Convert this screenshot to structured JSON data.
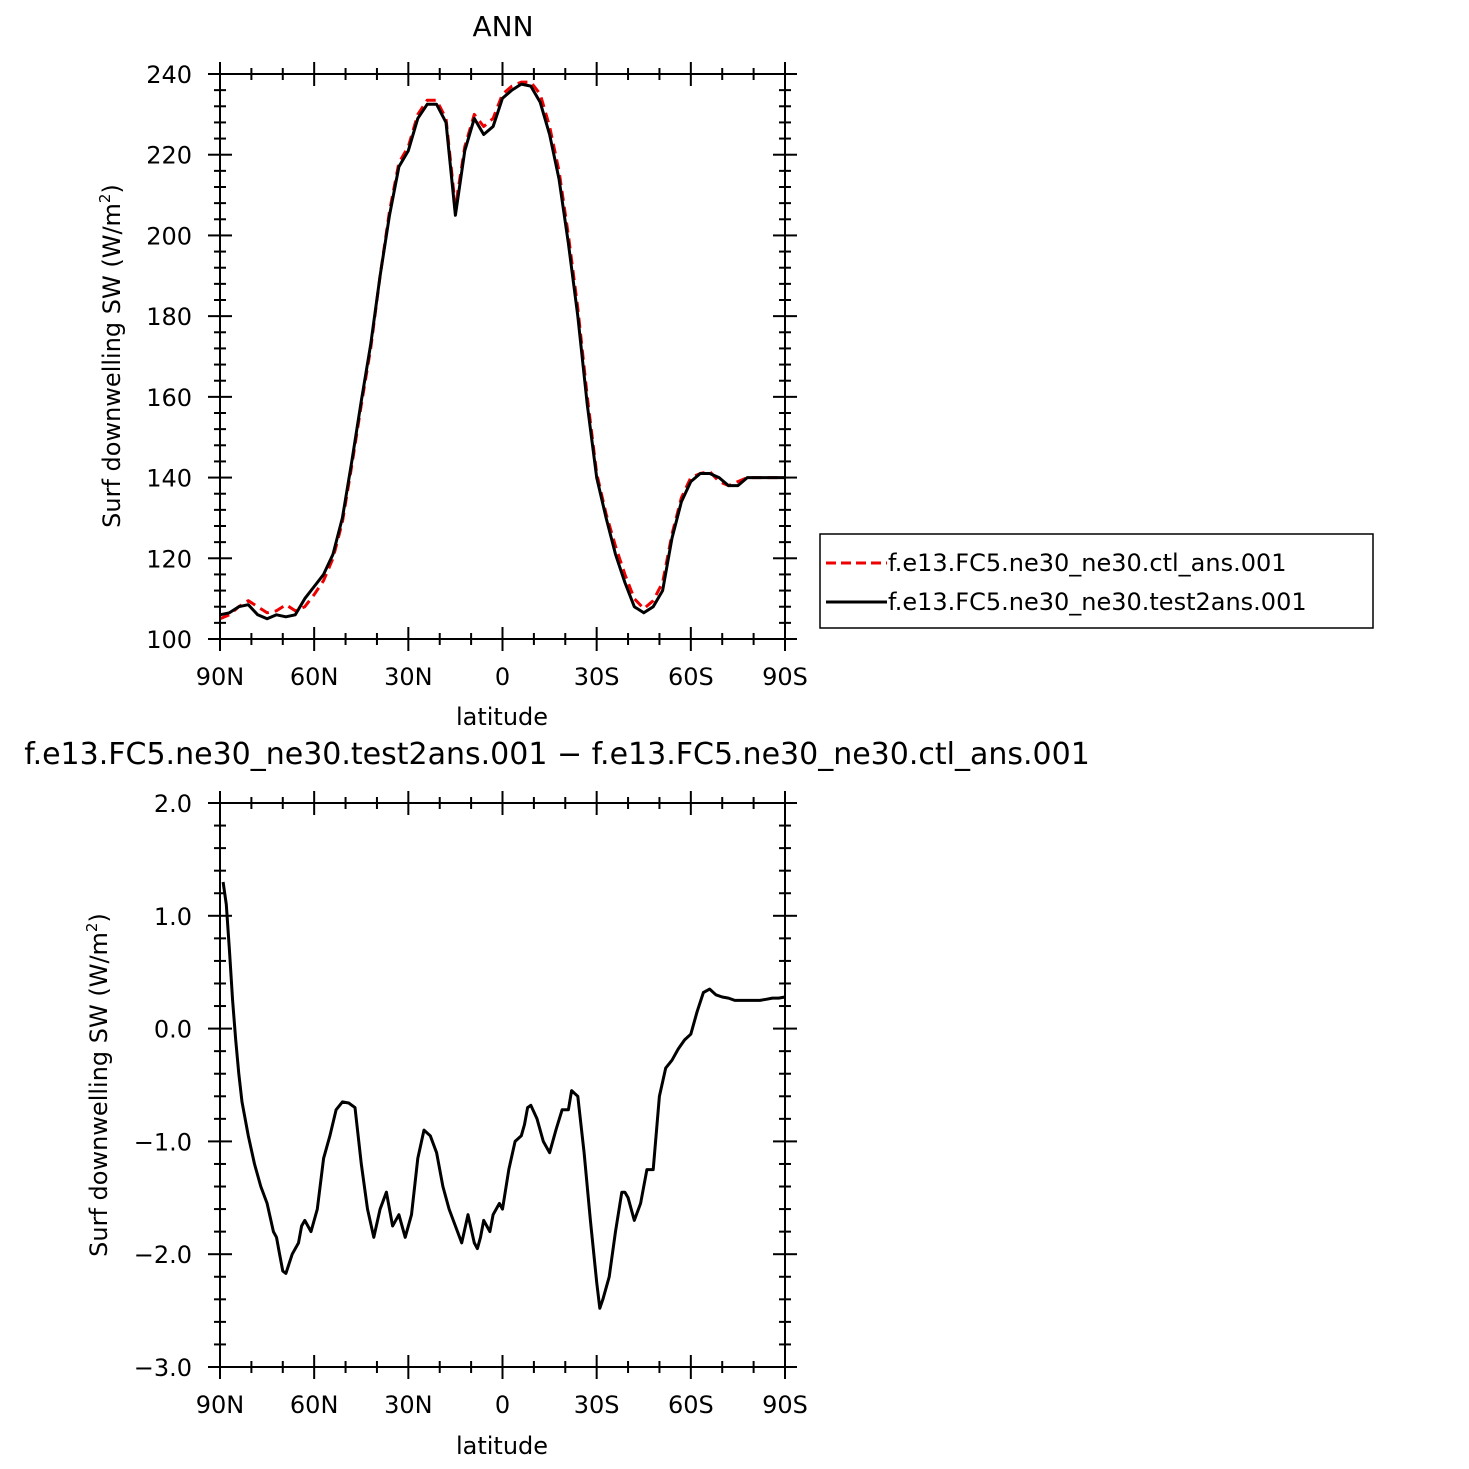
{
  "chart_data": [
    {
      "type": "line",
      "title": "ANN",
      "xlabel": "latitude",
      "ylabel_main": "Surf downwelling SW (W/m",
      "ylabel_sup": "2",
      "ylabel_close": ")",
      "xlim": [
        90,
        -90
      ],
      "ylim": [
        100,
        240
      ],
      "xticks": [
        {
          "v": 90,
          "label": "90N"
        },
        {
          "v": 60,
          "label": "60N"
        },
        {
          "v": 30,
          "label": "30N"
        },
        {
          "v": 0,
          "label": "0"
        },
        {
          "v": -30,
          "label": "30S"
        },
        {
          "v": -60,
          "label": "60S"
        },
        {
          "v": -90,
          "label": "90S"
        }
      ],
      "yticks": [
        {
          "v": 100,
          "label": "100"
        },
        {
          "v": 120,
          "label": "120"
        },
        {
          "v": 140,
          "label": "140"
        },
        {
          "v": 160,
          "label": "160"
        },
        {
          "v": 180,
          "label": "180"
        },
        {
          "v": 200,
          "label": "200"
        },
        {
          "v": 220,
          "label": "220"
        },
        {
          "v": 240,
          "label": "240"
        }
      ],
      "legend": {
        "placement": "right",
        "entries": [
          {
            "name": "f.e13.FC5.ne30_ne30.ctl_ans.001",
            "color": "#ee0000",
            "dash": "dashed"
          },
          {
            "name": "f.e13.FC5.ne30_ne30.test2ans.001",
            "color": "#000000",
            "dash": "solid"
          }
        ]
      },
      "series": [
        {
          "name": "f.e13.FC5.ne30_ne30.ctl_ans.001",
          "color": "#ee0000",
          "dash": "dashed",
          "x": [
            90,
            87,
            84,
            81,
            78,
            75,
            72,
            69,
            66,
            63,
            60,
            57,
            54,
            51,
            48,
            45,
            42,
            39,
            36,
            33,
            30,
            27,
            24,
            21,
            18,
            15,
            12,
            9,
            6,
            3,
            0,
            -3,
            -6,
            -9,
            -12,
            -15,
            -18,
            -21,
            -24,
            -27,
            -30,
            -33,
            -36,
            -39,
            -42,
            -45,
            -48,
            -51,
            -54,
            -57,
            -60,
            -63,
            -66,
            -69,
            -72,
            -75,
            -78,
            -81,
            -84,
            -87,
            -90
          ],
          "y": [
            105,
            106,
            108,
            109.5,
            108,
            106.5,
            107,
            108.5,
            107,
            108,
            111,
            114.5,
            120,
            129,
            143,
            158,
            172,
            190,
            206,
            218,
            222,
            230,
            233.5,
            233.5,
            229,
            207,
            222,
            230,
            227,
            229,
            235,
            237,
            238,
            238,
            235,
            227,
            216,
            200,
            182,
            160,
            141,
            131,
            123,
            116,
            110,
            107.5,
            109.5,
            114,
            126,
            135,
            140,
            141,
            141.5,
            139,
            138,
            139,
            140,
            140,
            140,
            140,
            140
          ]
        },
        {
          "name": "f.e13.FC5.ne30_ne30.test2ans.001",
          "color": "#000000",
          "dash": "solid",
          "x": [
            90,
            87,
            84,
            81,
            78,
            75,
            72,
            69,
            66,
            63,
            60,
            57,
            54,
            51,
            48,
            45,
            42,
            39,
            36,
            33,
            30,
            27,
            24,
            21,
            18,
            15,
            12,
            9,
            6,
            3,
            0,
            -3,
            -6,
            -9,
            -12,
            -15,
            -18,
            -21,
            -24,
            -27,
            -30,
            -33,
            -36,
            -39,
            -42,
            -45,
            -48,
            -51,
            -54,
            -57,
            -60,
            -63,
            -66,
            -69,
            -72,
            -75,
            -78,
            -81,
            -84,
            -87,
            -90
          ],
          "y": [
            106,
            106.5,
            108,
            108.5,
            106,
            105,
            106,
            105.5,
            106,
            110,
            113,
            116,
            121,
            130,
            144,
            159,
            173,
            190,
            205,
            217,
            221,
            229,
            232.5,
            232.5,
            228,
            205,
            221,
            229,
            225,
            227,
            234,
            236,
            237.5,
            237,
            233,
            225,
            214,
            198,
            180,
            158,
            140,
            130,
            121,
            114,
            108,
            106.5,
            108,
            112,
            125,
            134,
            139,
            141,
            141,
            140,
            138,
            138,
            140,
            140,
            140,
            140,
            140
          ]
        }
      ]
    },
    {
      "type": "line",
      "title": "f.e13.FC5.ne30_ne30.test2ans.001 − f.e13.FC5.ne30_ne30.ctl_ans.001",
      "xlabel": "latitude",
      "ylabel_main": "Surf downwelling SW (W/m",
      "ylabel_sup": "2",
      "ylabel_close": ")",
      "xlim": [
        90,
        -90
      ],
      "ylim": [
        -3,
        2
      ],
      "xticks": [
        {
          "v": 90,
          "label": "90N"
        },
        {
          "v": 60,
          "label": "60N"
        },
        {
          "v": 30,
          "label": "30N"
        },
        {
          "v": 0,
          "label": "0"
        },
        {
          "v": -30,
          "label": "30S"
        },
        {
          "v": -60,
          "label": "60S"
        },
        {
          "v": -90,
          "label": "90S"
        }
      ],
      "yticks": [
        {
          "v": -3,
          "label": "−3.0"
        },
        {
          "v": -2,
          "label": "−2.0"
        },
        {
          "v": -1,
          "label": "−1.0"
        },
        {
          "v": 0,
          "label": "0.0"
        },
        {
          "v": 1,
          "label": "1.0"
        },
        {
          "v": 2,
          "label": "2.0"
        }
      ],
      "series": [
        {
          "color": "#000000",
          "dash": "solid",
          "x": [
            89,
            88,
            87,
            86,
            85,
            84,
            83,
            81,
            79,
            77,
            75,
            73,
            72,
            71,
            70,
            69,
            67,
            65,
            64,
            63,
            61,
            59,
            57,
            55,
            53,
            51,
            49,
            47,
            45,
            43,
            41,
            39,
            37,
            35,
            33,
            31,
            29,
            27,
            25,
            23,
            21,
            19,
            17,
            15,
            13,
            11,
            9,
            8,
            7,
            6,
            5,
            4,
            3,
            2,
            1,
            0,
            -2,
            -4,
            -6,
            -7,
            -8,
            -9,
            -11,
            -13,
            -15,
            -17,
            -19,
            -21,
            -22,
            -24,
            -26,
            -28,
            -30,
            -31,
            -32,
            -34,
            -36,
            -38,
            -39,
            -40,
            -42,
            -44,
            -46,
            -48,
            -50,
            -52,
            -54,
            -56,
            -58,
            -60,
            -62,
            -64,
            -66,
            -68,
            -70,
            -72,
            -74,
            -76,
            -78,
            -80,
            -82,
            -84,
            -86,
            -88,
            -90
          ],
          "y": [
            1.3,
            1.1,
            0.7,
            0.25,
            -0.1,
            -0.4,
            -0.65,
            -0.95,
            -1.2,
            -1.4,
            -1.55,
            -1.8,
            -1.85,
            -2.0,
            -2.15,
            -2.17,
            -2.0,
            -1.9,
            -1.75,
            -1.7,
            -1.8,
            -1.6,
            -1.15,
            -0.95,
            -0.72,
            -0.65,
            -0.66,
            -0.7,
            -1.2,
            -1.6,
            -1.85,
            -1.6,
            -1.45,
            -1.75,
            -1.65,
            -1.85,
            -1.65,
            -1.15,
            -0.9,
            -0.95,
            -1.1,
            -1.4,
            -1.6,
            -1.75,
            -1.9,
            -1.65,
            -1.9,
            -1.95,
            -1.85,
            -1.7,
            -1.75,
            -1.8,
            -1.65,
            -1.6,
            -1.55,
            -1.6,
            -1.25,
            -1.0,
            -0.95,
            -0.85,
            -0.7,
            -0.68,
            -0.8,
            -1.0,
            -1.1,
            -0.9,
            -0.72,
            -0.72,
            -0.55,
            -0.6,
            -1.1,
            -1.7,
            -2.25,
            -2.48,
            -2.4,
            -2.2,
            -1.8,
            -1.45,
            -1.45,
            -1.5,
            -1.7,
            -1.55,
            -1.25,
            -1.25,
            -0.6,
            -0.35,
            -0.28,
            -0.18,
            -0.1,
            -0.05,
            0.15,
            0.32,
            0.35,
            0.3,
            0.28,
            0.27,
            0.25,
            0.25,
            0.25,
            0.25,
            0.25,
            0.26,
            0.27,
            0.27,
            0.28
          ]
        }
      ]
    }
  ]
}
